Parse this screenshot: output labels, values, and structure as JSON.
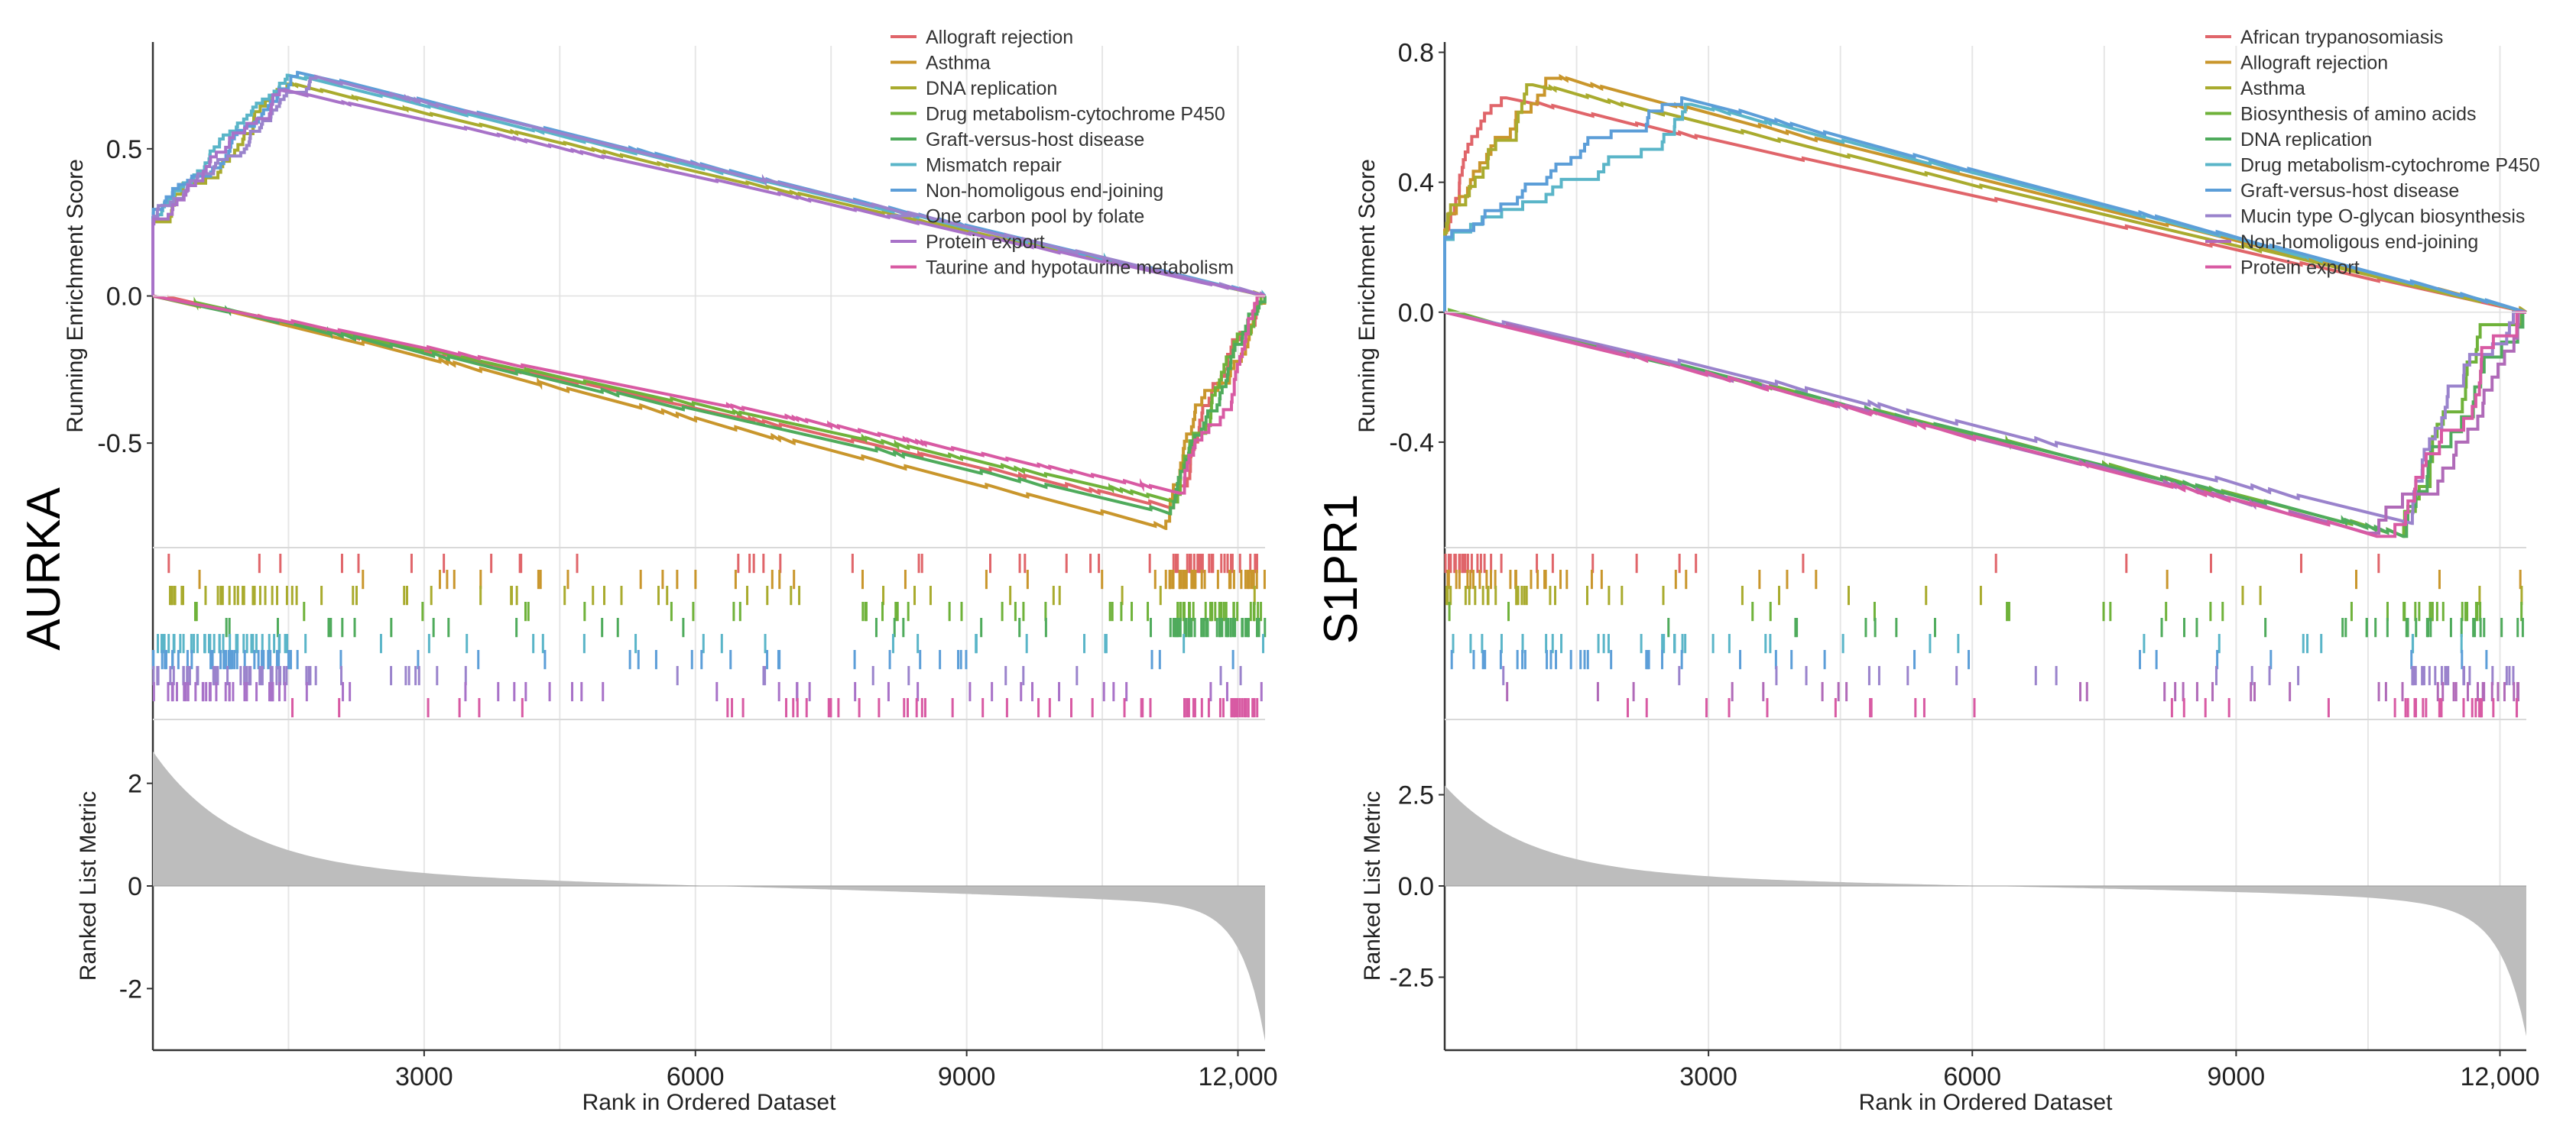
{
  "chart_data": [
    {
      "type": "line",
      "panel_label": "AURKA",
      "ylabel": "Running Enrichment Score",
      "yticks": [
        "0.5",
        "0.0",
        "-0.5"
      ],
      "ylim": [
        -0.85,
        0.85
      ],
      "xlim": [
        0,
        12300
      ],
      "metric_ylabel": "Ranked List Metric",
      "metric_yticks": [
        "2",
        "0",
        "-2"
      ],
      "metric_ylim": [
        -3.2,
        3.2
      ],
      "xlabel": "Rank in Ordered Dataset",
      "xticks": [
        "3000",
        "6000",
        "9000",
        "12,000"
      ],
      "xtick_values": [
        3000,
        6000,
        9000,
        12000
      ],
      "legend_position": "top-right",
      "grid": true,
      "series": [
        {
          "name": "Allograft rejection",
          "color": "#e0656a",
          "direction": "down",
          "peak_x": 11250,
          "peak_y": -0.72
        },
        {
          "name": "Asthma",
          "color": "#c9962c",
          "direction": "down",
          "peak_x": 11200,
          "peak_y": -0.79
        },
        {
          "name": "DNA replication",
          "color": "#a9ab2e",
          "direction": "up",
          "peak_x": 1500,
          "peak_y": 0.72
        },
        {
          "name": "Drug metabolism-cytochrome P450",
          "color": "#6fb23a",
          "direction": "down",
          "peak_x": 11300,
          "peak_y": -0.7
        },
        {
          "name": "Graft-versus-host disease",
          "color": "#4fab5c",
          "direction": "down",
          "peak_x": 11250,
          "peak_y": -0.74
        },
        {
          "name": "Mismatch repair",
          "color": "#5ab5c8",
          "direction": "up",
          "peak_x": 1500,
          "peak_y": 0.75
        },
        {
          "name": "Non-homoligous end-joining",
          "color": "#5c9ed8",
          "direction": "up",
          "peak_x": 1600,
          "peak_y": 0.76
        },
        {
          "name": "One carbon pool by folate",
          "color": "#9a83cc",
          "direction": "up",
          "peak_x": 1800,
          "peak_y": 0.74
        },
        {
          "name": "Protein export",
          "color": "#a872c8",
          "direction": "up",
          "peak_x": 1400,
          "peak_y": 0.7
        },
        {
          "name": "Taurine and hypotaurine metabolism",
          "color": "#d85aa3",
          "direction": "down",
          "peak_x": 11350,
          "peak_y": -0.67
        }
      ]
    },
    {
      "type": "line",
      "panel_label": "S1PR1",
      "ylabel": "Running Enrichment Score",
      "yticks": [
        "0.8",
        "0.4",
        "0.0",
        "-0.4"
      ],
      "ylim": [
        -0.72,
        0.82
      ],
      "xlim": [
        0,
        12300
      ],
      "metric_ylabel": "Ranked List Metric",
      "metric_yticks": [
        "2.5",
        "0.0",
        "-2.5"
      ],
      "metric_ylim": [
        -4.5,
        4.5
      ],
      "xlabel": "Rank in Ordered Dataset",
      "xticks": [
        "3000",
        "6000",
        "9000",
        "12,000"
      ],
      "xtick_values": [
        3000,
        6000,
        9000,
        12000
      ],
      "legend_position": "top-right",
      "grid": true,
      "series": [
        {
          "name": "African trypanosomiasis",
          "color": "#e0656a",
          "direction": "up",
          "peak_x": 700,
          "peak_y": 0.66
        },
        {
          "name": "Allograft rejection",
          "color": "#c9962c",
          "direction": "up",
          "peak_x": 1300,
          "peak_y": 0.72
        },
        {
          "name": "Asthma",
          "color": "#a9ab2e",
          "direction": "up",
          "peak_x": 1000,
          "peak_y": 0.7
        },
        {
          "name": "Biosynthesis of amino acids",
          "color": "#6fb23a",
          "direction": "down",
          "peak_x": 10900,
          "peak_y": -0.69
        },
        {
          "name": "DNA replication",
          "color": "#4fab5c",
          "direction": "down",
          "peak_x": 10900,
          "peak_y": -0.69
        },
        {
          "name": "Drug metabolism-cytochrome P450",
          "color": "#5ab5c8",
          "direction": "up",
          "peak_x": 2800,
          "peak_y": 0.64
        },
        {
          "name": "Graft-versus-host disease",
          "color": "#5c9ed8",
          "direction": "up",
          "peak_x": 2700,
          "peak_y": 0.66
        },
        {
          "name": "Mucin type O-glycan biosynthesis",
          "color": "#9a83cc",
          "direction": "down",
          "peak_x": 11000,
          "peak_y": -0.65
        },
        {
          "name": "Non-homoligous end-joining",
          "color": "#b06ab8",
          "direction": "down",
          "peak_x": 10500,
          "peak_y": -0.68
        },
        {
          "name": "Protein export",
          "color": "#d85aa3",
          "direction": "down",
          "peak_x": 10600,
          "peak_y": -0.69
        }
      ]
    }
  ]
}
